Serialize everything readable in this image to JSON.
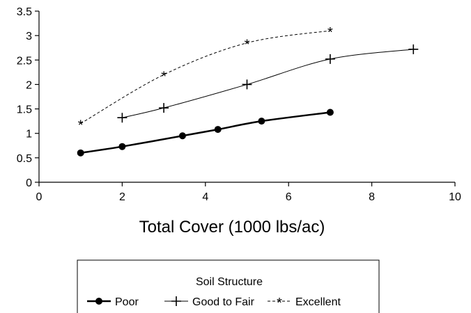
{
  "chart_data": {
    "type": "line",
    "title": "",
    "xlabel": "Total Cover (1000 lbs/ac)",
    "ylabel": "",
    "xlim": [
      0,
      10
    ],
    "ylim": [
      0,
      3.5
    ],
    "x_ticks": [
      "0",
      "2",
      "4",
      "6",
      "8",
      "10"
    ],
    "y_ticks": [
      "0",
      "0.5",
      "1",
      "1.5",
      "2",
      "2.5",
      "3",
      "3.5"
    ],
    "grid": false,
    "legend_title": "Soil Structure",
    "legend_position": "bottom-center",
    "series": [
      {
        "name": "Poor",
        "marker": "circle",
        "line_style": "solid-thick",
        "color": "#000000",
        "x": [
          1.0,
          2.0,
          3.45,
          4.3,
          5.35,
          7.0
        ],
        "y": [
          0.6,
          0.73,
          0.95,
          1.08,
          1.25,
          1.43
        ]
      },
      {
        "name": "Good to Fair",
        "marker": "plus",
        "line_style": "solid-thin",
        "color": "#000000",
        "x": [
          2.0,
          3.0,
          5.0,
          7.0,
          9.0
        ],
        "y": [
          1.32,
          1.52,
          2.0,
          2.52,
          2.72
        ]
      },
      {
        "name": "Excellent",
        "marker": "asterisk",
        "line_style": "dashed",
        "color": "#000000",
        "x": [
          1.0,
          3.0,
          5.0,
          7.0
        ],
        "y": [
          1.2,
          2.2,
          2.85,
          3.1
        ]
      }
    ]
  }
}
